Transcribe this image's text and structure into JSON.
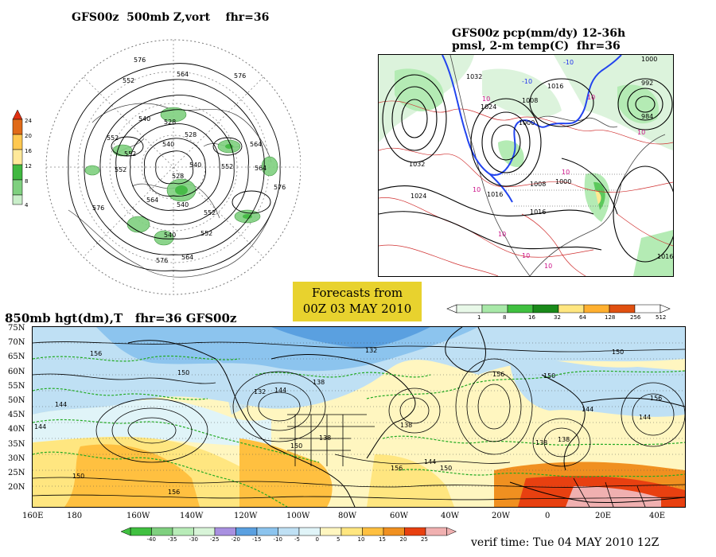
{
  "panels": {
    "vort500": {
      "title": "GFS00z  500mb Z,vort    fhr=36",
      "colorbar_ticks": [
        "24",
        "20",
        "16",
        "12",
        "8",
        "4"
      ],
      "colorbar_colors": [
        "#e06a18",
        "#ffc850",
        "#ffe99a",
        "#40b840",
        "#7fd07f",
        "#c9eec9"
      ],
      "contour_labels": [
        "576",
        "564",
        "552",
        "540",
        "528",
        "576",
        "552",
        "540",
        "528",
        "564",
        "552",
        "540",
        "552",
        "564",
        "576",
        "528",
        "540",
        "552",
        "564",
        "576",
        "540",
        "552",
        "564",
        "576",
        "552"
      ]
    },
    "precip": {
      "title_line1": "GFS00z pcp(mm/dy) 12-36h",
      "title_line2": "pmsl, 2-m temp(C)  fhr=36",
      "pressure_labels": [
        "1000",
        "1032",
        "1016",
        "1024",
        "1008",
        "1000",
        "992",
        "1032",
        "1024",
        "1016",
        "1008",
        "1000",
        "984",
        "1016",
        "1016"
      ],
      "temp_labels": [
        "-10",
        "-10",
        "10",
        "10",
        "10",
        "10",
        "10",
        "10",
        "10",
        "10"
      ],
      "colorbar_ticks": [
        "1",
        "8",
        "16",
        "32",
        "64",
        "128",
        "256",
        "512"
      ],
      "colorbar_colors": [
        "#e8f8e8",
        "#a8e8a8",
        "#40c040",
        "#1a8a1a",
        "#ffe680",
        "#ffb030",
        "#e05010",
        "#ffffff"
      ]
    },
    "banner": {
      "line1": "Forecasts from",
      "line2": "00Z 03 MAY 2010"
    },
    "h850": {
      "title": "850mb hgt(dm),T   fhr=36 GFS00z",
      "lat_labels": [
        "75N",
        "70N",
        "65N",
        "60N",
        "55N",
        "50N",
        "45N",
        "40N",
        "35N",
        "30N",
        "25N",
        "20N"
      ],
      "lon_labels": [
        "160E",
        "180",
        "160W",
        "140W",
        "120W",
        "100W",
        "80W",
        "60W",
        "40W",
        "20W",
        "0",
        "20E",
        "40E"
      ],
      "contour_labels": [
        "156",
        "150",
        "144",
        "144",
        "150",
        "156",
        "132",
        "138",
        "144",
        "150",
        "156",
        "138",
        "132",
        "138",
        "144",
        "150",
        "156",
        "138",
        "150",
        "144",
        "138",
        "144",
        "150",
        "156"
      ],
      "colorbar_ticks": [
        "-40",
        "-35",
        "-30",
        "-25",
        "-20",
        "-15",
        "-10",
        "-5",
        "0",
        "5",
        "10",
        "15",
        "20",
        "25"
      ],
      "colorbar_colors": [
        "#40c040",
        "#7fd07f",
        "#b8ecb8",
        "#d8f4d8",
        "#a890e0",
        "#5aa0e0",
        "#8cc4ee",
        "#bfe0f4",
        "#e0f4f8",
        "#fff6c0",
        "#ffe680",
        "#ffc040",
        "#f09020",
        "#e84010",
        "#f0b0b0"
      ],
      "verif": "verif time: Tue 04 MAY 2010 12Z"
    }
  }
}
